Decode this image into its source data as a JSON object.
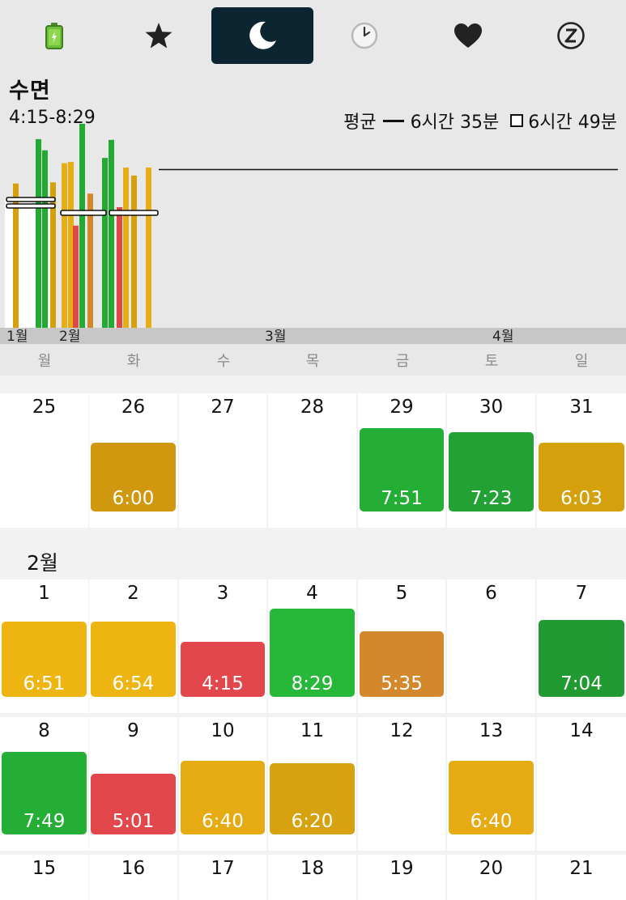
{
  "tabs": [
    {
      "name": "battery-icon",
      "active": false
    },
    {
      "name": "star-icon",
      "active": false
    },
    {
      "name": "moon-icon",
      "active": true
    },
    {
      "name": "clock-icon",
      "active": false
    },
    {
      "name": "heart-icon",
      "active": false
    },
    {
      "name": "sleep-z-icon",
      "active": false
    }
  ],
  "header": {
    "title": "수면",
    "range": "4:15-8:29",
    "avg_label": "평균",
    "avg_value": "6시간 35분",
    "avg2_value": "6시간 49분"
  },
  "weekdays": [
    "월",
    "화",
    "수",
    "목",
    "금",
    "토",
    "일"
  ],
  "chart_data": {
    "type": "bar",
    "month_labels": [
      "1월",
      "2월",
      "3월",
      "4월"
    ],
    "values": [
      "6:00",
      "7:51",
      "7:23",
      "6:03",
      "6:51",
      "6:54",
      "4:15",
      "8:29",
      "5:35",
      "7:04",
      "7:49",
      "5:01",
      "6:40",
      "6:20",
      "6:40"
    ],
    "colors": [
      "#d4a00c",
      "#22aa33",
      "#22aa33",
      "#d4a00c",
      "#e6ad14",
      "#e6ad14",
      "#e04848",
      "#22aa33",
      "#d4882a",
      "#22aa33",
      "#22aa33",
      "#e04848",
      "#e6ad14",
      "#d4a00c",
      "#e6ad14"
    ],
    "average_line": "6:35"
  },
  "calendar": {
    "weeks": [
      {
        "days": [
          {
            "day": "25",
            "sleep": null
          },
          {
            "day": "26",
            "sleep": "6:00",
            "color": "#d0980f"
          },
          {
            "day": "27",
            "sleep": null
          },
          {
            "day": "28",
            "sleep": null
          },
          {
            "day": "29",
            "sleep": "7:51",
            "color": "#25ae36"
          },
          {
            "day": "30",
            "sleep": "7:23",
            "color": "#22a234"
          },
          {
            "day": "31",
            "sleep": "6:03",
            "color": "#d4a00c"
          }
        ]
      },
      {
        "month_label": "2월",
        "days": [
          {
            "day": "1",
            "sleep": "6:51",
            "color": "#edb412"
          },
          {
            "day": "2",
            "sleep": "6:54",
            "color": "#edb412"
          },
          {
            "day": "3",
            "sleep": "4:15",
            "color": "#e2474c"
          },
          {
            "day": "4",
            "sleep": "8:29",
            "color": "#27b83a"
          },
          {
            "day": "5",
            "sleep": "5:35",
            "color": "#d4882e"
          },
          {
            "day": "6",
            "sleep": null
          },
          {
            "day": "7",
            "sleep": "7:04",
            "color": "#229a32"
          }
        ]
      },
      {
        "days": [
          {
            "day": "8",
            "sleep": "7:49",
            "color": "#25ae36"
          },
          {
            "day": "9",
            "sleep": "5:01",
            "color": "#e2474c"
          },
          {
            "day": "10",
            "sleep": "6:40",
            "color": "#e6ab12"
          },
          {
            "day": "11",
            "sleep": "6:20",
            "color": "#d6a210"
          },
          {
            "day": "12",
            "sleep": null
          },
          {
            "day": "13",
            "sleep": "6:40",
            "color": "#e6ab12"
          },
          {
            "day": "14",
            "sleep": null
          }
        ]
      },
      {
        "days": [
          {
            "day": "15",
            "sleep": null
          },
          {
            "day": "16",
            "sleep": null
          },
          {
            "day": "17",
            "sleep": null
          },
          {
            "day": "18",
            "sleep": null
          },
          {
            "day": "19",
            "sleep": null
          },
          {
            "day": "20",
            "sleep": null
          },
          {
            "day": "21",
            "sleep": null
          }
        ]
      }
    ]
  }
}
